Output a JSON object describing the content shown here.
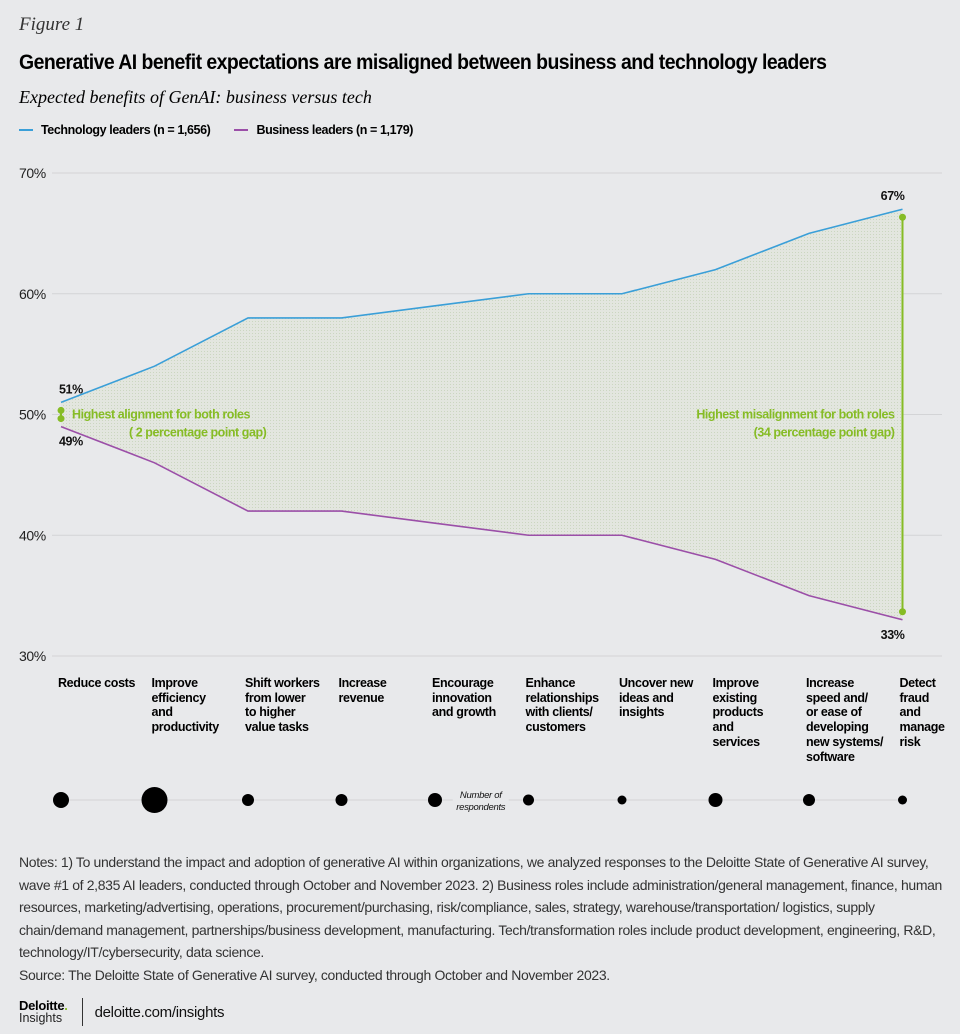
{
  "figure_label": "Figure 1",
  "title": "Generative AI benefit expectations are misaligned between business and technology leaders",
  "subtitle": "Expected benefits of GenAI: business versus tech",
  "colors": {
    "tech": "#3a9fd8",
    "business": "#9b4fa8",
    "annotation": "#86bc25",
    "fill": "#dde3d6",
    "grid": "#d3d4d6",
    "bubble": "#000000"
  },
  "chart_data": {
    "type": "line",
    "title": "Expected benefits of GenAI: business versus tech",
    "xlabel": "",
    "ylabel": "",
    "ylim": [
      30,
      70
    ],
    "yticks": [
      70,
      60,
      50,
      40,
      30
    ],
    "ytick_labels": [
      "70%",
      "60%",
      "50%",
      "40%",
      "30%"
    ],
    "grid": true,
    "legend_position": "top-left",
    "categories": [
      "Reduce costs",
      "Improve\nefficiency\nand\nproductivity",
      "Shift workers\nfrom lower\nto higher\nvalue tasks",
      "Increase\nrevenue",
      "Encourage\ninnovation\nand growth",
      "Enhance\nrelationships\nwith clients/\ncustomers",
      "Uncover new\nideas and\ninsights",
      "Improve\nexisting\nproducts\nand\nservices",
      "Increase\nspeed and/\nor ease of\ndeveloping\nnew systems/\nsoftware",
      "Detect\nfraud\nand\nmanage\nrisk"
    ],
    "series": [
      {
        "name": "Technology leaders (n = 1,656)",
        "key": "tech",
        "values": [
          51,
          54,
          58,
          58,
          59,
          60,
          60,
          62,
          65,
          67
        ]
      },
      {
        "name": "Business leaders (n = 1,179)",
        "key": "business",
        "values": [
          49,
          46,
          42,
          42,
          41,
          40,
          40,
          38,
          35,
          33
        ]
      }
    ],
    "data_labels": [
      {
        "series": "tech",
        "index": 0,
        "text": "51%"
      },
      {
        "series": "business",
        "index": 0,
        "text": "49%"
      },
      {
        "series": "tech",
        "index": 9,
        "text": "67%"
      },
      {
        "series": "business",
        "index": 9,
        "text": "33%"
      }
    ],
    "annotations": [
      {
        "index": 0,
        "line1": "Highest alignment for both roles",
        "line2": "( 2 percentage point gap)"
      },
      {
        "index": 9,
        "line1": "Highest misalignment for both roles",
        "line2": "(34 percentage point gap)"
      }
    ],
    "respondents": {
      "label_line1": "Number of",
      "label_line2": "respondents",
      "relative_sizes": [
        16,
        26,
        12,
        12,
        14,
        11,
        9,
        14,
        12,
        9
      ]
    }
  },
  "notes": "Notes: 1) To understand the impact and adoption of generative AI within organizations, we analyzed responses to the Deloitte State of Generative AI survey, wave #1 of 2,835 AI leaders, conducted through October and November 2023. 2) Business roles include administration/general management, finance, human resources, marketing/advertising, operations, procurement/purchasing, risk/compliance, sales, strategy, warehouse/transportation/ logistics, supply chain/demand management, partnerships/business development, manufacturing. Tech/transformation roles include product development, engineering, R&D, technology/IT/cybersecurity, data science.",
  "source": "Source: The Deloitte State of Generative AI survey, conducted through October and November 2023.",
  "footer": {
    "logo_top": "Deloitte",
    "logo_dot": ".",
    "logo_bottom": "Insights",
    "url": "deloitte.com/insights"
  }
}
